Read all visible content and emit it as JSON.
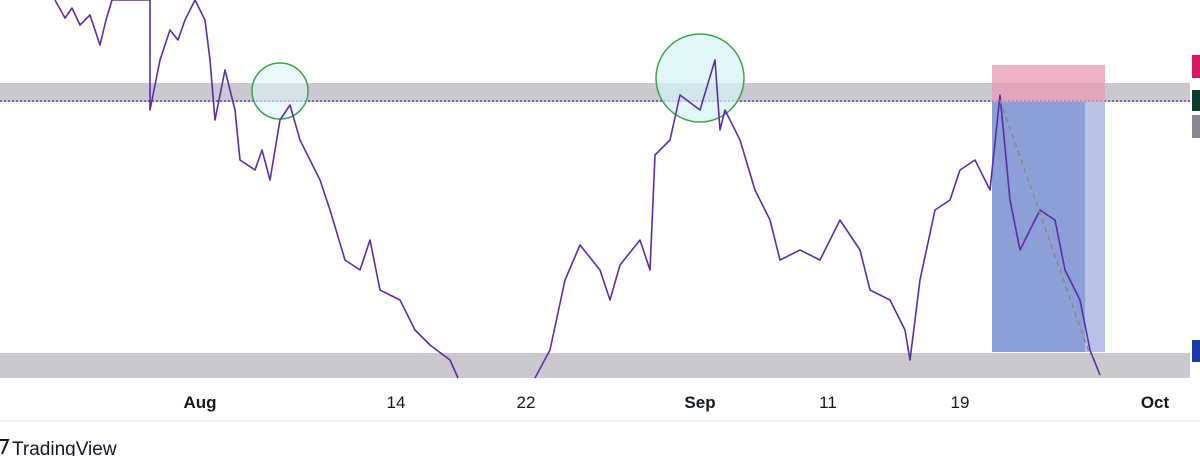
{
  "x_axis": {
    "labels": [
      "Aug",
      "14",
      "22",
      "Sep",
      "11",
      "19",
      "Oct"
    ]
  },
  "watermark": "TradingView"
}
